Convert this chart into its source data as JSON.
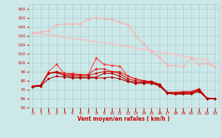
{
  "x": [
    0,
    1,
    2,
    3,
    4,
    5,
    6,
    7,
    8,
    9,
    10,
    11,
    12,
    13,
    14,
    15,
    16,
    17,
    18,
    19,
    20,
    21,
    22,
    23
  ],
  "series": [
    {
      "color": "#ffaaaa",
      "marker": "D",
      "markersize": 1.8,
      "linewidth": 0.8,
      "y": [
        133,
        134,
        135,
        142,
        143,
        143,
        143,
        148,
        150,
        149,
        148,
        145,
        142,
        130,
        121,
        112,
        106,
        97,
        97,
        95,
        105,
        98,
        99,
        95
      ]
    },
    {
      "color": "#ffbbbb",
      "marker": null,
      "markersize": 0,
      "linewidth": 1.0,
      "y": [
        133,
        132,
        131,
        130,
        128,
        127,
        126,
        125,
        123,
        122,
        121,
        119,
        118,
        116,
        115,
        113,
        112,
        110,
        109,
        107,
        106,
        104,
        103,
        95
      ]
    },
    {
      "color": "#ff3333",
      "marker": "D",
      "markersize": 1.8,
      "linewidth": 0.8,
      "y": [
        74,
        75,
        90,
        98,
        88,
        88,
        87,
        86,
        105,
        98,
        97,
        96,
        85,
        82,
        80,
        79,
        75,
        67,
        67,
        68,
        68,
        71,
        61,
        60
      ]
    },
    {
      "color": "#dd2222",
      "marker": "D",
      "markersize": 1.8,
      "linewidth": 0.8,
      "y": [
        74,
        75,
        88,
        90,
        88,
        87,
        86,
        87,
        93,
        93,
        90,
        90,
        85,
        82,
        80,
        79,
        76,
        67,
        67,
        67,
        67,
        71,
        60,
        60
      ]
    },
    {
      "color": "#cc0000",
      "marker": "D",
      "markersize": 1.8,
      "linewidth": 0.8,
      "y": [
        74,
        75,
        88,
        90,
        86,
        86,
        86,
        86,
        88,
        90,
        90,
        88,
        82,
        80,
        79,
        79,
        76,
        67,
        66,
        67,
        67,
        70,
        60,
        60
      ]
    },
    {
      "color": "#bb0000",
      "marker": "D",
      "markersize": 1.8,
      "linewidth": 0.8,
      "y": [
        73,
        74,
        88,
        89,
        86,
        84,
        84,
        84,
        84,
        88,
        88,
        85,
        80,
        78,
        78,
        78,
        75,
        66,
        65,
        66,
        66,
        69,
        60,
        60
      ]
    },
    {
      "color": "#aa0000",
      "marker": "D",
      "markersize": 1.8,
      "linewidth": 0.8,
      "y": [
        73,
        74,
        82,
        85,
        84,
        83,
        83,
        83,
        83,
        83,
        84,
        82,
        79,
        77,
        77,
        77,
        74,
        66,
        65,
        65,
        65,
        68,
        60,
        60
      ]
    }
  ],
  "xlabel": "Vent moyen/en rafales ( km/h )",
  "xlim": [
    -0.5,
    23.5
  ],
  "ylim": [
    50,
    165
  ],
  "yticks": [
    50,
    60,
    70,
    80,
    90,
    100,
    110,
    120,
    130,
    140,
    150,
    160
  ],
  "xticks": [
    0,
    1,
    2,
    3,
    4,
    5,
    6,
    7,
    8,
    9,
    10,
    11,
    12,
    13,
    14,
    15,
    16,
    17,
    18,
    19,
    20,
    21,
    22,
    23
  ],
  "bg_color": "#cce8e8",
  "grid_color": "#aacccc",
  "tick_color": "#cc0000",
  "label_color": "#cc0000"
}
